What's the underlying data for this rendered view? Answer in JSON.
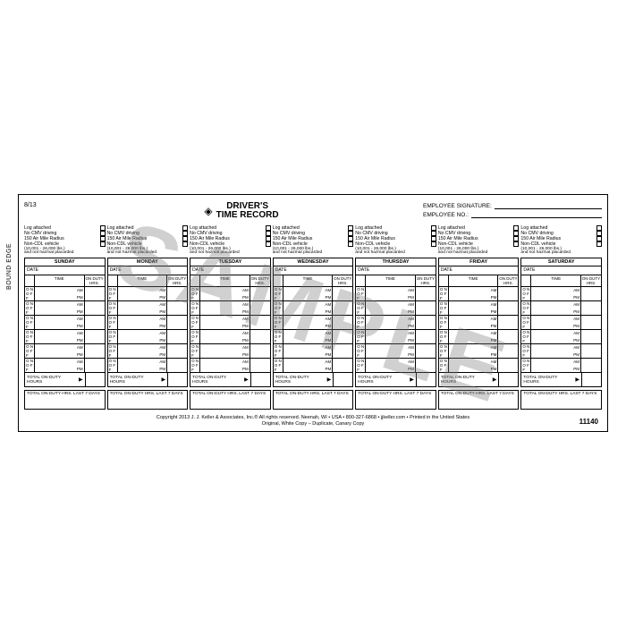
{
  "meta": {
    "date_code": "8/13",
    "bound_edge": "BOUND EDGE",
    "watermark": "SAMPLE",
    "form_number": "11140"
  },
  "title": {
    "line1": "DRIVER'S",
    "line2": "TIME RECORD"
  },
  "employee": {
    "signature_label": "EMPLOYEE SIGNATURE:",
    "number_label": "EMPLOYEE NO.:"
  },
  "checkboxes": {
    "items": [
      "Log attached",
      "No CMV driving",
      "150 Air Mile Radius",
      "Non-CDL vehicle"
    ],
    "sub1": "(10,001 - 26,000 lbs.)",
    "sub2": "and not hazmat placarded"
  },
  "days": [
    "SUNDAY",
    "MONDAY",
    "TUESDAY",
    "WEDNESDAY",
    "THURSDAY",
    "FRIDAY",
    "SATURDAY"
  ],
  "labels": {
    "date": "DATE",
    "time": "TIME",
    "on_duty_hrs": "ON DUTY HRS.",
    "on": "O N",
    "off": "O F F",
    "am": "AM",
    "pm": "PM",
    "total": "TOTAL ON-DUTY HOURS",
    "last7": "TOTAL ON-DUTY HRS. LAST 7 DAYS"
  },
  "time_slots": 6,
  "footer": {
    "copyright": "Copyright 2013 J. J. Keller & Associates, Inc.® All rights reserved. Neenah, WI • USA • 800-327-6868 • jjkeller.com • Printed in the United States",
    "copies": "Original, White Copy – Duplicate, Canary Copy"
  },
  "colors": {
    "border": "#000000",
    "background": "#ffffff",
    "watermark": "rgba(120,120,120,0.35)"
  }
}
